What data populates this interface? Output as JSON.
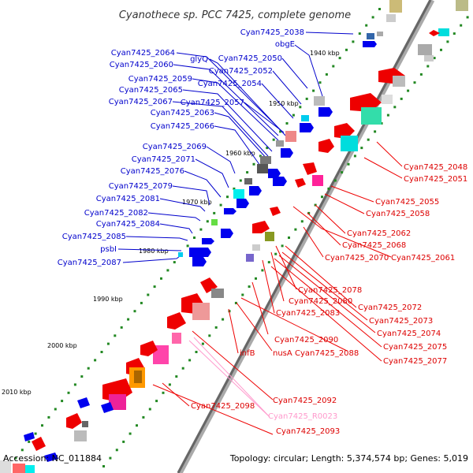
{
  "title": "Cyanothece sp. PCC 7425, complete genome",
  "footer": {
    "accession": "Accession: NC_011884",
    "summary": "Topology: circular; Length: 5,374,574 bp; Genes: 5,019"
  },
  "colors": {
    "strand_plus": "#0000ee",
    "strand_minus": "#ee0000",
    "rna": "#ff99cc",
    "backbone": "#999999"
  },
  "scale_labels": [
    "1940 kbp",
    "1950 kbp",
    "1960 kbp",
    "1970 kbp",
    "1980 kbp",
    "1990 kbp",
    "2000 kbp",
    "2010 kbp"
  ],
  "left_labels": [
    "Cyan7425_2038",
    "obgE",
    "Cyan7425_2064",
    "glyQ",
    "Cyan7425_2050",
    "Cyan7425_2060",
    "Cyan7425_2052",
    "Cyan7425_2059",
    "Cyan7425_2054",
    "Cyan7425_2065",
    "Cyan7425_2067",
    "Cyan7425_2057",
    "Cyan7425_2063",
    "Cyan7425_2066",
    "Cyan7425_2069",
    "Cyan7425_2071",
    "Cyan7425_2076",
    "Cyan7425_2079",
    "Cyan7425_2081",
    "Cyan7425_2082",
    "Cyan7425_2084",
    "Cyan7425_2085",
    "psbI",
    "Cyan7425_2087"
  ],
  "right_labels": [
    "Cyan7425_2048",
    "Cyan7425_2051",
    "Cyan7425_2055",
    "Cyan7425_2058",
    "Cyan7425_2062",
    "Cyan7425_2068",
    "Cyan7425_2070",
    "Cyan7425_2061",
    "Cyan7425_2078",
    "Cyan7425_2080",
    "Cyan7425_2072",
    "Cyan7425_2083",
    "Cyan7425_2073",
    "Cyan7425_2074",
    "Cyan7425_2090",
    "Cyan7425_2075",
    "infB",
    "nusA",
    "Cyan7425_2088",
    "Cyan7425_2077",
    "Cyan7425_2092",
    "Cyan7425_2098",
    "Cyan7425_R0023",
    "Cyan7425_2093"
  ]
}
